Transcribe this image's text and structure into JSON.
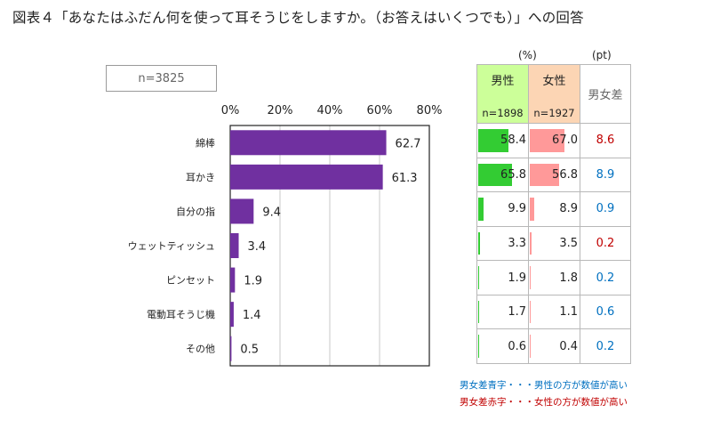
{
  "title": "図表４「あなたはふだん何を使って耳そうじをしますか。（お答えはいくつでも）」への回答",
  "sample_box": "n=3825",
  "colors": {
    "bar": "#7030a0",
    "male_bar": "#33cc33",
    "female_bar": "#ff9999",
    "male_higher": "#0070c0",
    "female_higher": "#c00000"
  },
  "chart_data": {
    "type": "bar",
    "orientation": "horizontal",
    "categories": [
      "綿棒",
      "耳かき",
      "自分の指",
      "ウェットティッシュ",
      "ピンセット",
      "電動耳そうじ機",
      "その他"
    ],
    "values": [
      62.7,
      61.3,
      9.4,
      3.4,
      1.9,
      1.4,
      0.5
    ],
    "xlim": [
      0,
      80
    ],
    "xticks": [
      0,
      20,
      40,
      60,
      80
    ],
    "xtick_labels": [
      "0%",
      "20%",
      "40%",
      "60%",
      "80%"
    ],
    "grid": true
  },
  "table": {
    "unit_pct": "(%)",
    "unit_pt": "(pt)",
    "male_label": "男性",
    "male_n": "n=1898",
    "female_label": "女性",
    "female_n": "n=1927",
    "diff_label": "男女差",
    "rows": [
      {
        "male": "58.4",
        "female": "67.0",
        "diff": "8.6",
        "higher": "female"
      },
      {
        "male": "65.8",
        "female": "56.8",
        "diff": "8.9",
        "higher": "male"
      },
      {
        "male": "9.9",
        "female": "8.9",
        "diff": "0.9",
        "higher": "male"
      },
      {
        "male": "3.3",
        "female": "3.5",
        "diff": "0.2",
        "higher": "female"
      },
      {
        "male": "1.9",
        "female": "1.8",
        "diff": "0.2",
        "higher": "male"
      },
      {
        "male": "1.7",
        "female": "1.1",
        "diff": "0.6",
        "higher": "male"
      },
      {
        "male": "0.6",
        "female": "0.4",
        "diff": "0.2",
        "higher": "male"
      }
    ]
  },
  "notes": {
    "blue": "男女差青字・・・男性の方が数値が高い",
    "red": "男女差赤字・・・女性の方が数値が高い"
  }
}
